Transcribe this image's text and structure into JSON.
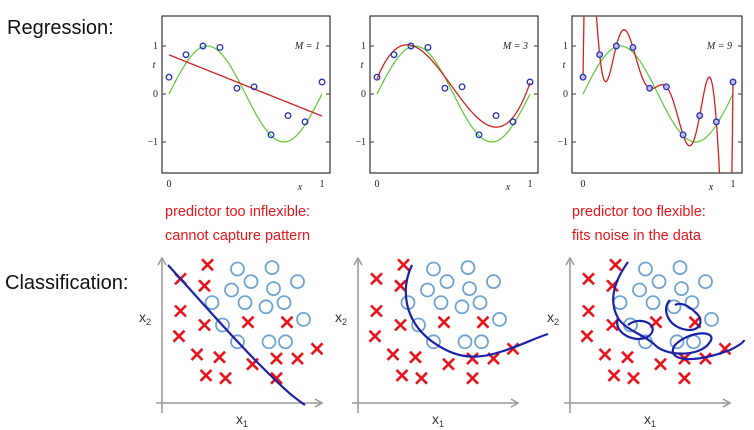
{
  "headings": {
    "regression": "Regression:",
    "classification": "Classification:"
  },
  "notes": {
    "inflexible": [
      "predictor too inflexible:",
      "cannot capture pattern"
    ],
    "flexible": [
      "predictor too flexible:",
      "fits noise in the data"
    ]
  },
  "regression": {
    "panels": [
      {
        "label": "M = 1",
        "degree": 1
      },
      {
        "label": "M = 3",
        "degree": 3
      },
      {
        "label": "M = 9",
        "degree": 9
      }
    ],
    "axis": {
      "x_label": "x",
      "y_label": "t",
      "x_ticks": [
        "0",
        "1"
      ],
      "y_ticks": [
        "1",
        "0",
        "−1"
      ]
    },
    "points": [
      [
        0,
        0.35
      ],
      [
        0.111,
        0.82
      ],
      [
        0.222,
        1.0
      ],
      [
        0.333,
        0.97
      ],
      [
        0.444,
        0.12
      ],
      [
        0.556,
        0.15
      ],
      [
        0.667,
        -0.85
      ],
      [
        0.778,
        -0.45
      ],
      [
        0.889,
        -0.58
      ],
      [
        1,
        0.25
      ]
    ],
    "colors": {
      "true_curve": "#66cc44",
      "fit": "#d42020",
      "points": "#2233bb"
    }
  },
  "classification": {
    "axis": {
      "x_label": "x1",
      "y_label": "x2"
    },
    "crosses": [
      [
        0.25,
        0.93
      ],
      [
        0.07,
        0.83
      ],
      [
        0.23,
        0.78
      ],
      [
        0.07,
        0.6
      ],
      [
        0.23,
        0.5
      ],
      [
        0.52,
        0.52
      ],
      [
        0.78,
        0.52
      ],
      [
        0.06,
        0.42
      ],
      [
        0.18,
        0.29
      ],
      [
        0.33,
        0.27
      ],
      [
        0.55,
        0.22
      ],
      [
        0.71,
        0.26
      ],
      [
        0.85,
        0.26
      ],
      [
        0.98,
        0.33
      ],
      [
        0.24,
        0.14
      ],
      [
        0.37,
        0.12
      ],
      [
        0.71,
        0.12
      ]
    ],
    "circles": [
      [
        0.45,
        0.9
      ],
      [
        0.68,
        0.91
      ],
      [
        0.54,
        0.81
      ],
      [
        0.41,
        0.75
      ],
      [
        0.69,
        0.76
      ],
      [
        0.85,
        0.81
      ],
      [
        0.28,
        0.66
      ],
      [
        0.5,
        0.66
      ],
      [
        0.64,
        0.63
      ],
      [
        0.76,
        0.66
      ],
      [
        0.35,
        0.5
      ],
      [
        0.89,
        0.54
      ],
      [
        0.45,
        0.38
      ],
      [
        0.66,
        0.38
      ],
      [
        0.77,
        0.38
      ]
    ],
    "colors": {
      "cross": "#e8141b",
      "circle": "#6fa3d0",
      "boundary": "#1a22a8"
    }
  }
}
